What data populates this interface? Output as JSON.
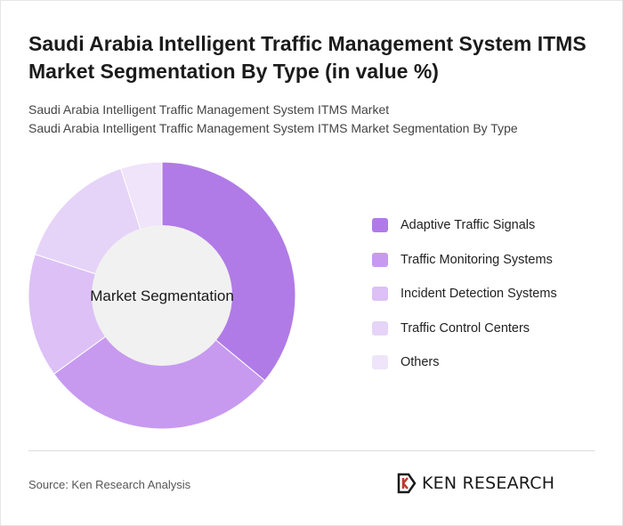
{
  "title": "Saudi Arabia Intelligent Traffic Management System ITMS Market Segmentation By Type (in value %)",
  "subtitle_line1": "Saudi Arabia Intelligent Traffic Management System ITMS Market",
  "subtitle_line2": "Saudi Arabia Intelligent Traffic Management System ITMS Market Segmentation By Type",
  "center_label": "Market Segmentation",
  "source": "Source: Ken Research Analysis",
  "logo_text": "KEN RESEARCH",
  "logo_icon": "k-monogram-icon",
  "chart_data": {
    "type": "pie",
    "style": "donut",
    "categories": [
      "Adaptive Traffic Signals",
      "Traffic Monitoring Systems",
      "Incident Detection Systems",
      "Traffic Control Centers",
      "Others"
    ],
    "values": [
      36,
      29,
      15,
      15,
      5
    ],
    "colors": [
      "#b07be6",
      "#c79af0",
      "#dcc0f6",
      "#e6d4f8",
      "#efe4fa"
    ],
    "legend_position": "right"
  }
}
